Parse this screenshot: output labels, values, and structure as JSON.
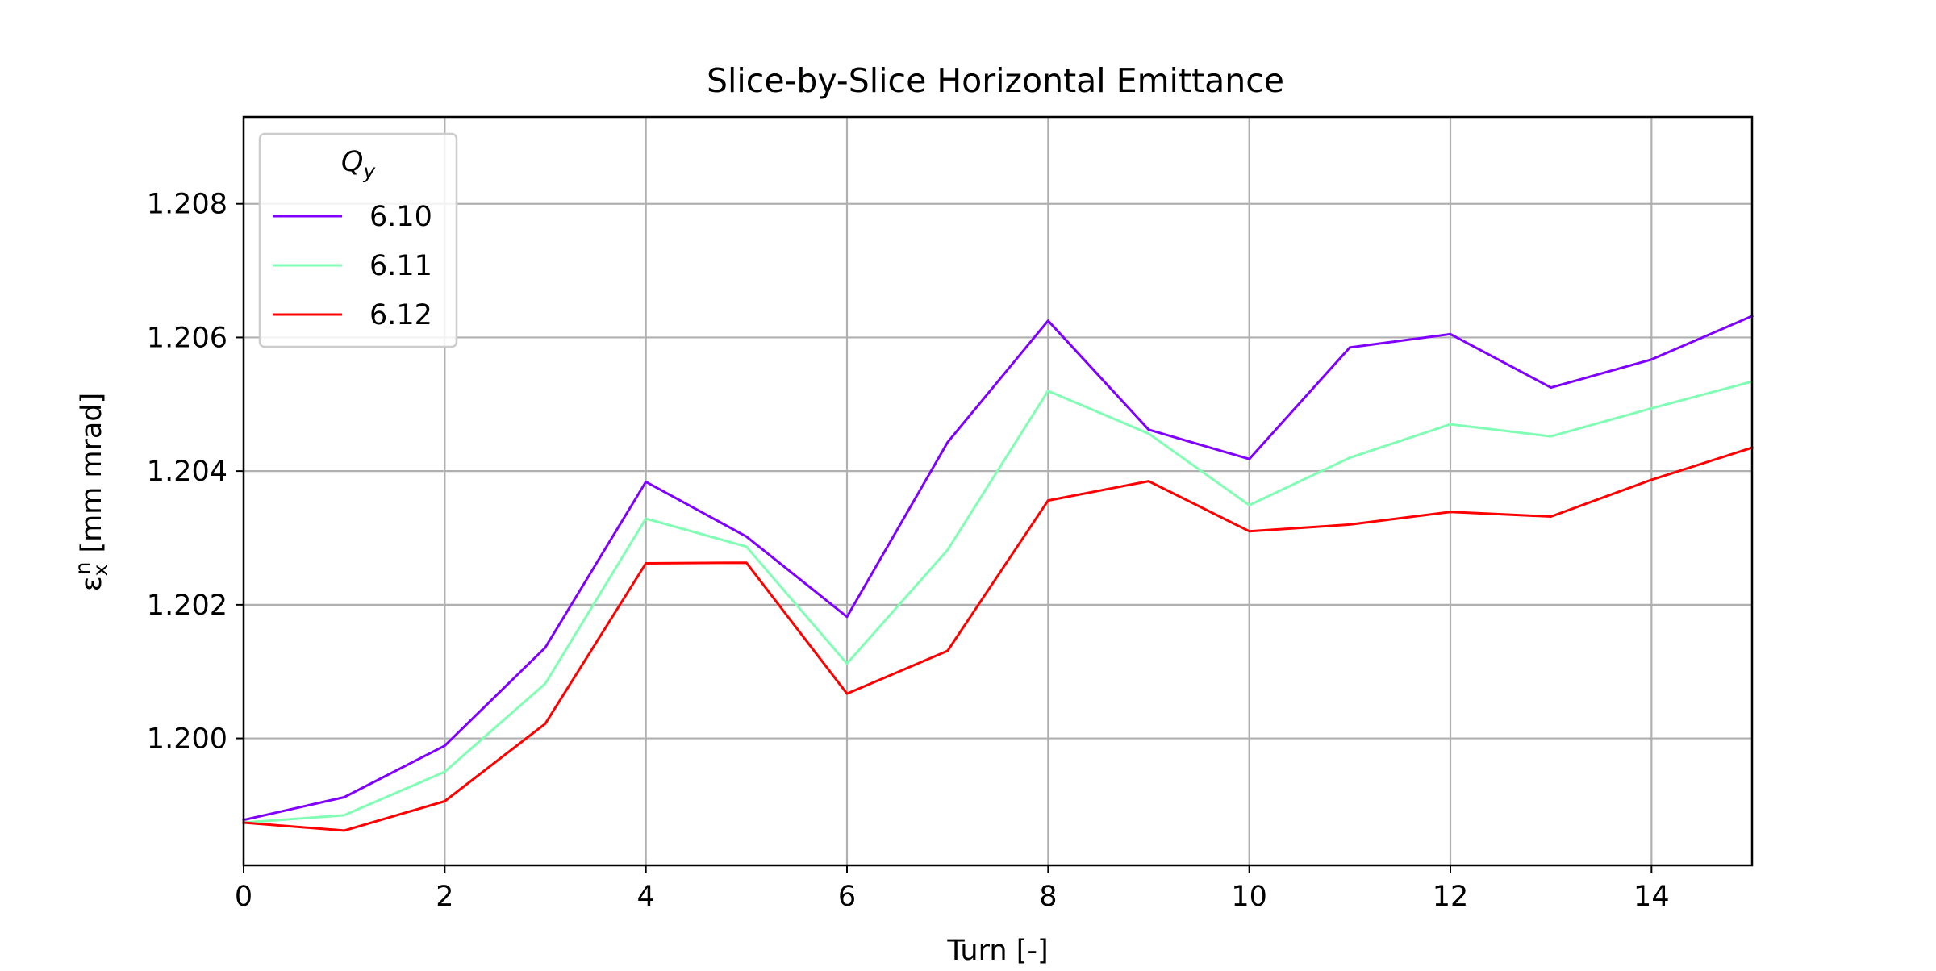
{
  "chart_data": {
    "type": "line",
    "title": "Slice-by-Slice Horizontal Emittance",
    "xlabel": "Turn [-]",
    "ylabel": "ε",
    "ylabel_sup": "n",
    "ylabel_sub": "x",
    "ylabel_units": " [mm mrad]",
    "xlim": [
      0,
      15
    ],
    "ylim": [
      1.1981,
      1.2093
    ],
    "x_ticks": [
      0,
      2,
      4,
      6,
      8,
      10,
      12,
      14
    ],
    "y_ticks": [
      1.2,
      1.202,
      1.204,
      1.206,
      1.208
    ],
    "y_tick_labels": [
      "1.200",
      "1.202",
      "1.204",
      "1.206",
      "1.208"
    ],
    "grid": true,
    "legend": {
      "title": "Q",
      "title_sub": "y",
      "placement": "top-left"
    },
    "x": [
      0,
      1,
      2,
      3,
      4,
      5,
      6,
      7,
      8,
      9,
      10,
      11,
      12,
      13,
      14,
      15
    ],
    "series": [
      {
        "name": "6.10",
        "color": "#8000ff",
        "values": [
          1.19878,
          1.19912,
          1.19989,
          1.20136,
          1.20384,
          1.20302,
          1.20182,
          1.20443,
          1.20625,
          1.20462,
          1.20418,
          1.20585,
          1.20605,
          1.20525,
          1.20567,
          1.20632
        ]
      },
      {
        "name": "6.11",
        "color": "#80ffb4",
        "values": [
          1.19874,
          1.19885,
          1.1995,
          1.20082,
          1.20329,
          1.20287,
          1.20112,
          1.20282,
          1.2052,
          1.20456,
          1.20349,
          1.2042,
          1.2047,
          1.20452,
          1.20494,
          1.20534
        ]
      },
      {
        "name": "6.12",
        "color": "#ff0000",
        "values": [
          1.19874,
          1.19862,
          1.19906,
          1.20022,
          1.20262,
          1.20263,
          1.20067,
          1.20131,
          1.20356,
          1.20385,
          1.2031,
          1.2032,
          1.20339,
          1.20332,
          1.20387,
          1.20435
        ]
      }
    ]
  }
}
